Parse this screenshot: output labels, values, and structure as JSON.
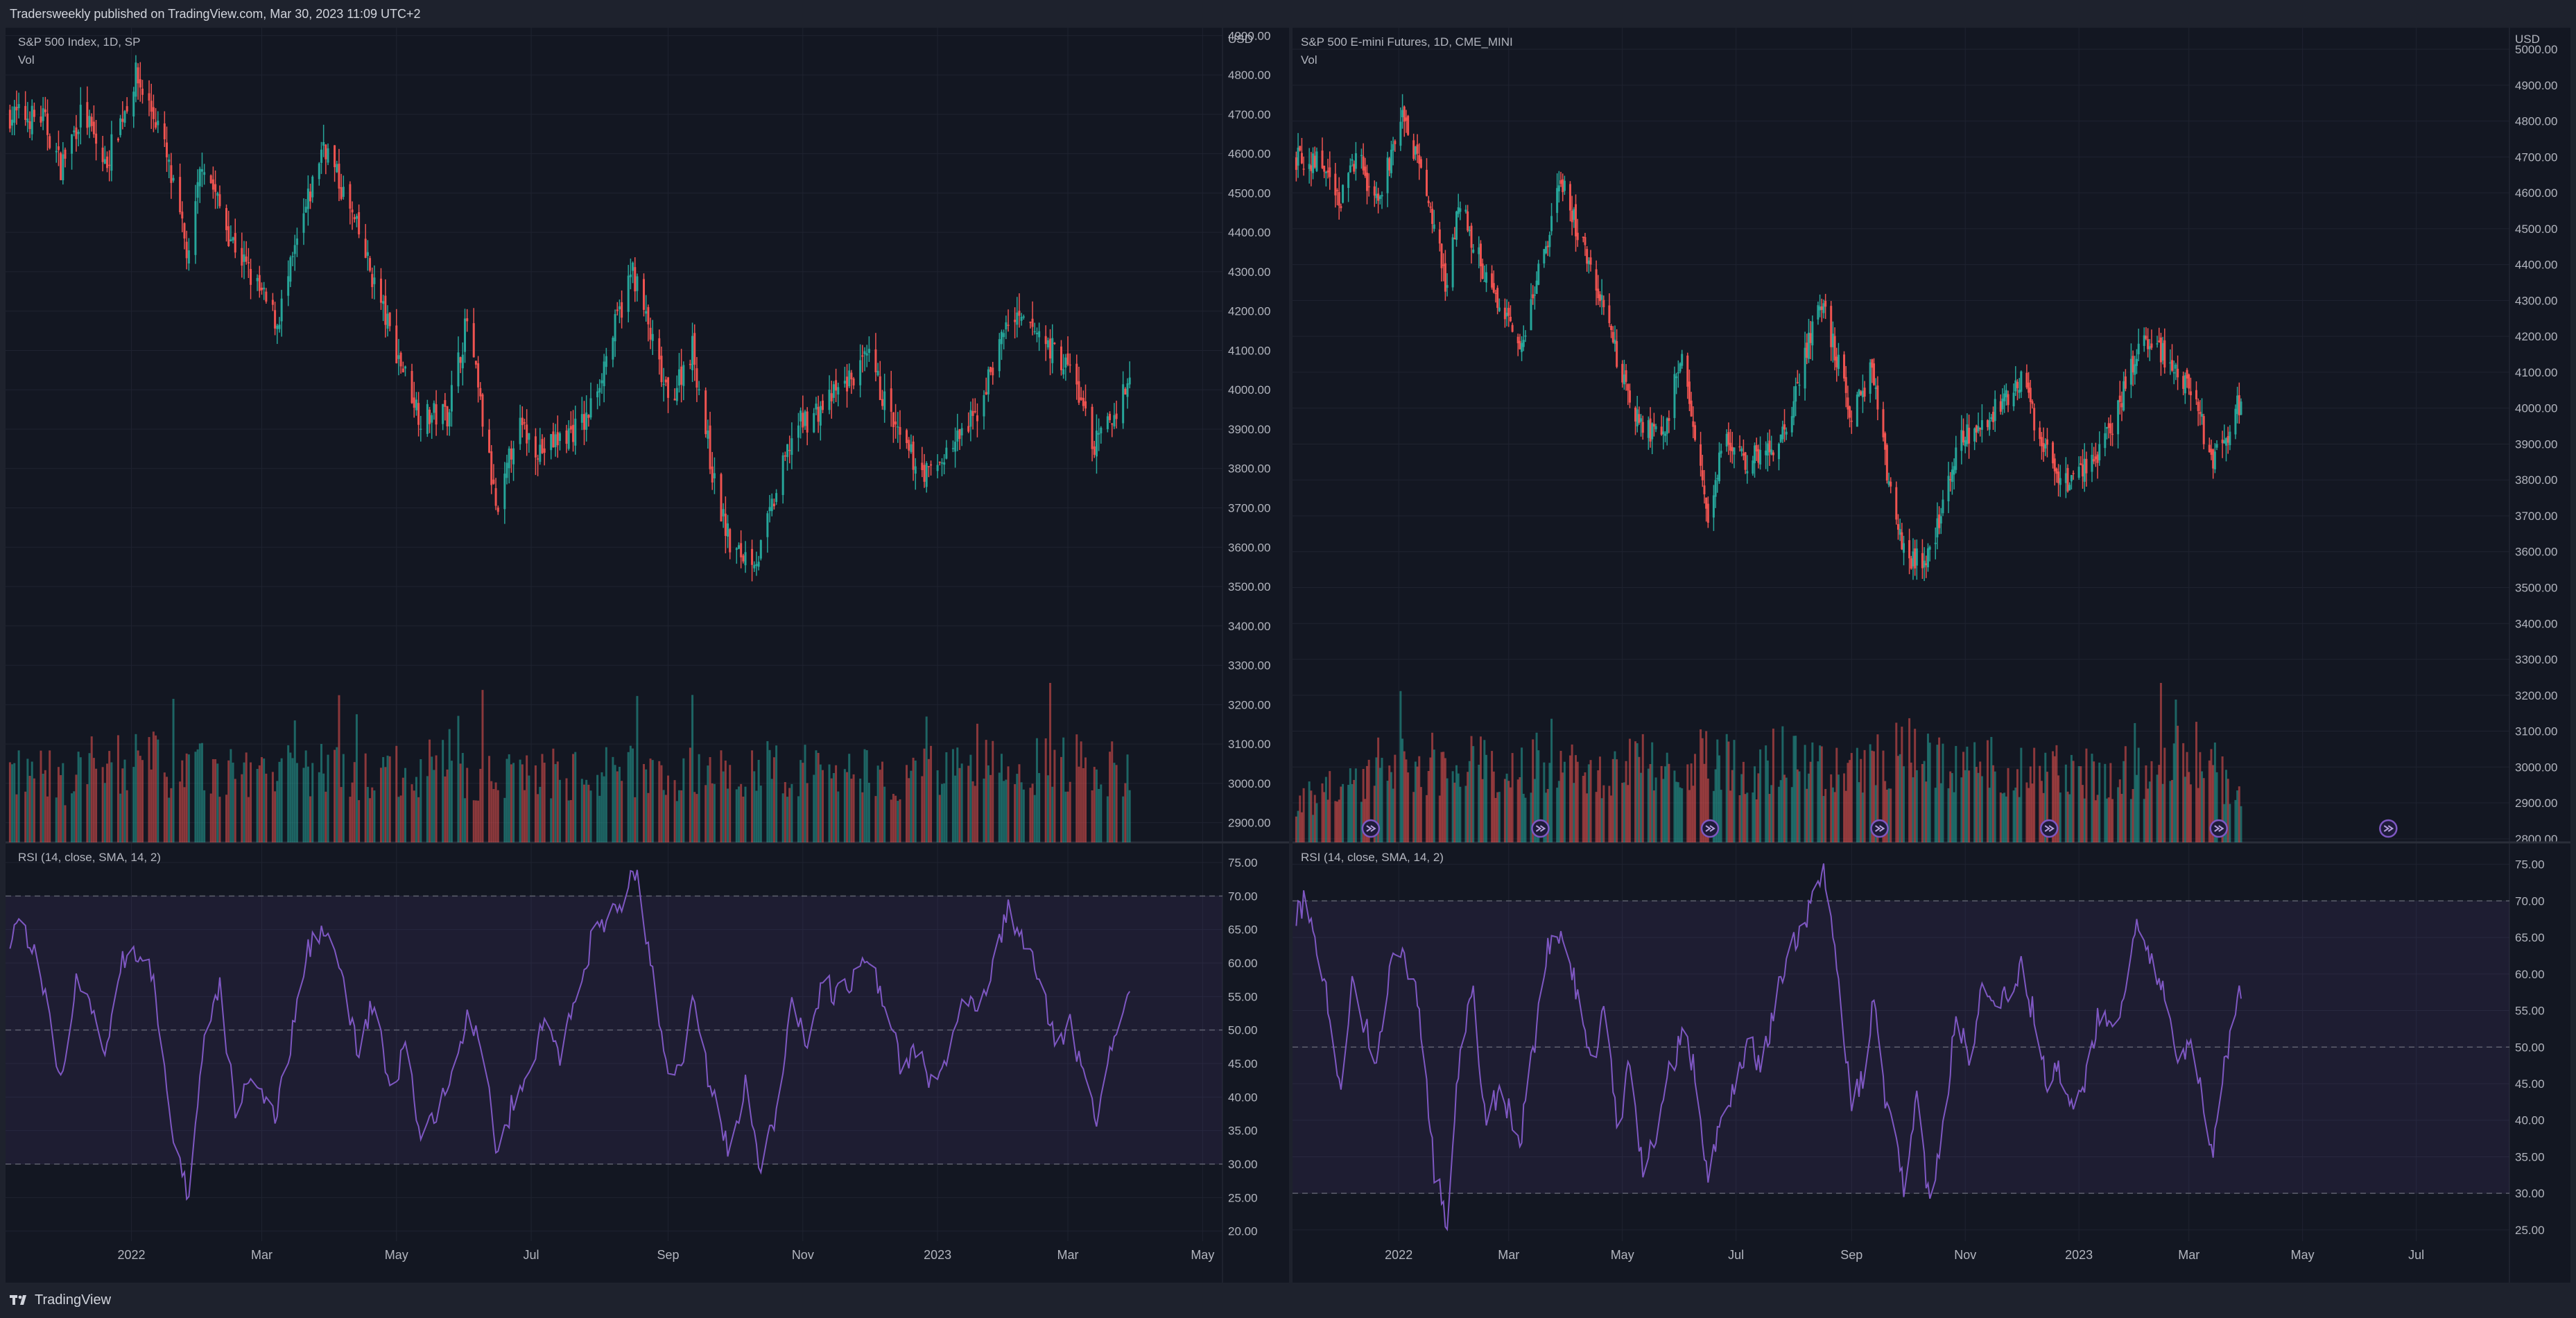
{
  "header": {
    "published": "Tradersweekly published on TradingView.com, Mar 30, 2023 11:09 UTC+2"
  },
  "footer": {
    "brand": "TradingView"
  },
  "colors": {
    "up": "#26a69a",
    "down": "#ef5350",
    "rsi": "#7e57c2",
    "background": "#131722",
    "grid": "#1f2330",
    "text": "#b2b5be"
  },
  "chart_data": [
    {
      "type": "candlestick",
      "title": "S&P 500 Index, 1D, SP",
      "volume_label": "Vol",
      "currency": "USD",
      "x_ticks": [
        "2022",
        "Mar",
        "May",
        "Jul",
        "Sep",
        "Nov",
        "2023",
        "Mar",
        "May"
      ],
      "y_ticks": [
        "4900.00",
        "4800.00",
        "4700.00",
        "4600.00",
        "4500.00",
        "4400.00",
        "4300.00",
        "4200.00",
        "4100.00",
        "4000.00",
        "3900.00",
        "3800.00",
        "3700.00",
        "3600.00",
        "3500.00",
        "3400.00",
        "3300.00",
        "3200.00",
        "3100.00",
        "3000.00",
        "2900.00"
      ],
      "ylim": [
        2850,
        4920
      ],
      "x_range": [
        "2021-11-05",
        "2023-05-10"
      ],
      "closes": [
        [
          "2021-11-05",
          4700
        ],
        [
          "2021-11-22",
          4690
        ],
        [
          "2021-11-30",
          4567
        ],
        [
          "2021-12-10",
          4712
        ],
        [
          "2021-12-20",
          4568
        ],
        [
          "2022-01-03",
          4797
        ],
        [
          "2022-01-14",
          4662
        ],
        [
          "2022-01-27",
          4326
        ],
        [
          "2022-02-02",
          4590
        ],
        [
          "2022-02-14",
          4400
        ],
        [
          "2022-02-24",
          4288
        ],
        [
          "2022-03-08",
          4170
        ],
        [
          "2022-03-29",
          4632
        ],
        [
          "2022-04-14",
          4392
        ],
        [
          "2022-04-29",
          4131
        ],
        [
          "2022-05-12",
          3930
        ],
        [
          "2022-05-24",
          3941
        ],
        [
          "2022-06-02",
          4176
        ],
        [
          "2022-06-16",
          3666
        ],
        [
          "2022-06-24",
          3911
        ],
        [
          "2022-07-06",
          3845
        ],
        [
          "2022-07-26",
          3921
        ],
        [
          "2022-08-16",
          4305
        ],
        [
          "2022-09-01",
          3966
        ],
        [
          "2022-09-12",
          4110
        ],
        [
          "2022-09-22",
          3757
        ],
        [
          "2022-09-30",
          3585
        ],
        [
          "2022-10-12",
          3577
        ],
        [
          "2022-10-28",
          3901
        ],
        [
          "2022-11-10",
          3956
        ],
        [
          "2022-12-01",
          4076
        ],
        [
          "2022-12-16",
          3852
        ],
        [
          "2022-12-28",
          3783
        ],
        [
          "2023-01-18",
          3928
        ],
        [
          "2023-02-02",
          4179
        ],
        [
          "2023-02-15",
          4147
        ],
        [
          "2023-03-03",
          4045
        ],
        [
          "2023-03-13",
          3855
        ],
        [
          "2023-03-22",
          3937
        ],
        [
          "2023-03-29",
          4027
        ]
      ],
      "volume_ylim": [
        0,
        100
      ],
      "volume": [
        42,
        45,
        38,
        48,
        40,
        52,
        44,
        46,
        41,
        50,
        43,
        47,
        39,
        45,
        44,
        48,
        42,
        41,
        46,
        43,
        40,
        44,
        47,
        42,
        45,
        41,
        49,
        43,
        46,
        44,
        45,
        42,
        47,
        43,
        48,
        44,
        50,
        52,
        46,
        45
      ],
      "rsi": {
        "label": "RSI (14, close, SMA, 14, 2)",
        "y_ticks": [
          "75.00",
          "70.00",
          "65.00",
          "60.00",
          "55.00",
          "50.00",
          "45.00",
          "40.00",
          "35.00",
          "30.00",
          "25.00",
          "20.00"
        ],
        "ylim": [
          18,
          78
        ],
        "band": [
          30,
          70
        ],
        "midline": 50,
        "values": [
          [
            "2021-11-05",
            63
          ],
          [
            "2021-11-12",
            67
          ],
          [
            "2021-11-22",
            57
          ],
          [
            "2021-11-30",
            42
          ],
          [
            "2021-12-07",
            58
          ],
          [
            "2021-12-14",
            52
          ],
          [
            "2021-12-20",
            47
          ],
          [
            "2021-12-28",
            61
          ],
          [
            "2022-01-04",
            62
          ],
          [
            "2022-01-11",
            58
          ],
          [
            "2022-01-20",
            32
          ],
          [
            "2022-01-27",
            25
          ],
          [
            "2022-02-03",
            49
          ],
          [
            "2022-02-10",
            56
          ],
          [
            "2022-02-17",
            38
          ],
          [
            "2022-02-24",
            44
          ],
          [
            "2022-03-07",
            36
          ],
          [
            "2022-03-14",
            48
          ],
          [
            "2022-03-22",
            62
          ],
          [
            "2022-03-29",
            66
          ],
          [
            "2022-04-06",
            58
          ],
          [
            "2022-04-14",
            46
          ],
          [
            "2022-04-21",
            55
          ],
          [
            "2022-04-29",
            38
          ],
          [
            "2022-05-05",
            49
          ],
          [
            "2022-05-12",
            33
          ],
          [
            "2022-05-19",
            37
          ],
          [
            "2022-05-26",
            45
          ],
          [
            "2022-06-03",
            53
          ],
          [
            "2022-06-09",
            46
          ],
          [
            "2022-06-16",
            31
          ],
          [
            "2022-06-24",
            41
          ],
          [
            "2022-07-01",
            45
          ],
          [
            "2022-07-08",
            52
          ],
          [
            "2022-07-14",
            46
          ],
          [
            "2022-07-22",
            56
          ],
          [
            "2022-07-29",
            64
          ],
          [
            "2022-08-05",
            66
          ],
          [
            "2022-08-12",
            70
          ],
          [
            "2022-08-17",
            74
          ],
          [
            "2022-08-24",
            61
          ],
          [
            "2022-09-01",
            42
          ],
          [
            "2022-09-08",
            47
          ],
          [
            "2022-09-13",
            56
          ],
          [
            "2022-09-20",
            41
          ],
          [
            "2022-09-27",
            34
          ],
          [
            "2022-09-30",
            31
          ],
          [
            "2022-10-06",
            43
          ],
          [
            "2022-10-13",
            29
          ],
          [
            "2022-10-20",
            38
          ],
          [
            "2022-10-27",
            55
          ],
          [
            "2022-11-03",
            48
          ],
          [
            "2022-11-10",
            57
          ],
          [
            "2022-11-17",
            55
          ],
          [
            "2022-11-24",
            58
          ],
          [
            "2022-12-01",
            60
          ],
          [
            "2022-12-08",
            54
          ],
          [
            "2022-12-15",
            45
          ],
          [
            "2022-12-22",
            47
          ],
          [
            "2022-12-29",
            42
          ],
          [
            "2023-01-06",
            47
          ],
          [
            "2023-01-13",
            55
          ],
          [
            "2023-01-20",
            52
          ],
          [
            "2023-01-27",
            60
          ],
          [
            "2023-02-02",
            69
          ],
          [
            "2023-02-09",
            62
          ],
          [
            "2023-02-16",
            58
          ],
          [
            "2023-02-23",
            48
          ],
          [
            "2023-03-02",
            51
          ],
          [
            "2023-03-09",
            42
          ],
          [
            "2023-03-14",
            36
          ],
          [
            "2023-03-20",
            48
          ],
          [
            "2023-03-24",
            50
          ],
          [
            "2023-03-29",
            56
          ]
        ]
      }
    },
    {
      "type": "candlestick",
      "title": "S&P 500 E-mini Futures, 1D, CME_MINI",
      "volume_label": "Vol",
      "currency": "USD",
      "x_ticks": [
        "2022",
        "Mar",
        "May",
        "Jul",
        "Sep",
        "Nov",
        "2023",
        "Mar",
        "May",
        "Jul"
      ],
      "y_ticks": [
        "5000.00",
        "4900.00",
        "4800.00",
        "4700.00",
        "4600.00",
        "4500.00",
        "4400.00",
        "4300.00",
        "4200.00",
        "4100.00",
        "4000.00",
        "3900.00",
        "3800.00",
        "3700.00",
        "3600.00",
        "3500.00",
        "3400.00",
        "3300.00",
        "3200.00",
        "3100.00",
        "3000.00",
        "2900.00",
        "2800.00"
      ],
      "ylim": [
        2790,
        5060
      ],
      "x_range": [
        "2021-11-05",
        "2023-08-20"
      ],
      "closes": [
        [
          "2021-11-05",
          4700
        ],
        [
          "2021-11-22",
          4690
        ],
        [
          "2021-11-30",
          4567
        ],
        [
          "2021-12-10",
          4712
        ],
        [
          "2021-12-20",
          4568
        ],
        [
          "2022-01-03",
          4797
        ],
        [
          "2022-01-14",
          4662
        ],
        [
          "2022-01-27",
          4326
        ],
        [
          "2022-02-02",
          4590
        ],
        [
          "2022-02-14",
          4400
        ],
        [
          "2022-02-24",
          4288
        ],
        [
          "2022-03-08",
          4170
        ],
        [
          "2022-03-29",
          4632
        ],
        [
          "2022-04-14",
          4392
        ],
        [
          "2022-04-29",
          4131
        ],
        [
          "2022-05-12",
          3930
        ],
        [
          "2022-05-24",
          3941
        ],
        [
          "2022-06-02",
          4176
        ],
        [
          "2022-06-16",
          3666
        ],
        [
          "2022-06-24",
          3911
        ],
        [
          "2022-07-06",
          3845
        ],
        [
          "2022-07-26",
          3921
        ],
        [
          "2022-08-16",
          4305
        ],
        [
          "2022-09-01",
          3966
        ],
        [
          "2022-09-12",
          4110
        ],
        [
          "2022-09-22",
          3757
        ],
        [
          "2022-09-30",
          3585
        ],
        [
          "2022-10-12",
          3577
        ],
        [
          "2022-10-28",
          3901
        ],
        [
          "2022-11-10",
          3956
        ],
        [
          "2022-12-01",
          4076
        ],
        [
          "2022-12-16",
          3852
        ],
        [
          "2022-12-28",
          3783
        ],
        [
          "2023-01-18",
          3928
        ],
        [
          "2023-02-02",
          4179
        ],
        [
          "2023-02-15",
          4147
        ],
        [
          "2023-03-03",
          4045
        ],
        [
          "2023-03-13",
          3855
        ],
        [
          "2023-03-22",
          3937
        ],
        [
          "2023-03-29",
          4027
        ]
      ],
      "volume_ylim": [
        0,
        100
      ],
      "volume": [
        22,
        30,
        34,
        40,
        38,
        44,
        46,
        52,
        48,
        42,
        50,
        46,
        44,
        40,
        48,
        50,
        46,
        52,
        48,
        44,
        54,
        50,
        46,
        42,
        52,
        56,
        58,
        50,
        46,
        48,
        44,
        42,
        46,
        40,
        44,
        42,
        48,
        60,
        44,
        24
      ],
      "volume_marker_icon": "rollover-icon",
      "volume_markers": [
        "2021-12-17",
        "2022-03-18",
        "2022-06-17",
        "2022-09-16",
        "2022-12-16",
        "2023-03-17",
        "2023-06-16"
      ],
      "rsi": {
        "label": "RSI (14, close, SMA, 14, 2)",
        "y_ticks": [
          "75.00",
          "70.00",
          "65.00",
          "60.00",
          "55.00",
          "50.00",
          "45.00",
          "40.00",
          "35.00",
          "30.00",
          "25.00"
        ],
        "ylim": [
          23,
          78
        ],
        "band": [
          30,
          70
        ],
        "midline": 50,
        "values": [
          [
            "2021-11-05",
            68
          ],
          [
            "2021-11-12",
            70
          ],
          [
            "2021-11-22",
            60
          ],
          [
            "2021-11-30",
            44
          ],
          [
            "2021-12-07",
            59
          ],
          [
            "2021-12-14",
            53
          ],
          [
            "2021-12-20",
            48
          ],
          [
            "2021-12-28",
            61
          ],
          [
            "2022-01-04",
            62
          ],
          [
            "2022-01-11",
            57
          ],
          [
            "2022-01-20",
            33
          ],
          [
            "2022-01-27",
            26
          ],
          [
            "2022-02-03",
            50
          ],
          [
            "2022-02-10",
            57
          ],
          [
            "2022-02-17",
            39
          ],
          [
            "2022-02-24",
            45
          ],
          [
            "2022-03-07",
            37
          ],
          [
            "2022-03-14",
            49
          ],
          [
            "2022-03-22",
            63
          ],
          [
            "2022-03-29",
            66
          ],
          [
            "2022-04-06",
            58
          ],
          [
            "2022-04-14",
            47
          ],
          [
            "2022-04-21",
            55
          ],
          [
            "2022-04-29",
            38
          ],
          [
            "2022-05-05",
            49
          ],
          [
            "2022-05-12",
            33
          ],
          [
            "2022-05-19",
            37
          ],
          [
            "2022-05-26",
            46
          ],
          [
            "2022-06-03",
            53
          ],
          [
            "2022-06-09",
            46
          ],
          [
            "2022-06-16",
            32
          ],
          [
            "2022-06-24",
            42
          ],
          [
            "2022-07-01",
            45
          ],
          [
            "2022-07-08",
            52
          ],
          [
            "2022-07-14",
            46
          ],
          [
            "2022-07-22",
            56
          ],
          [
            "2022-07-29",
            64
          ],
          [
            "2022-08-05",
            66
          ],
          [
            "2022-08-12",
            70
          ],
          [
            "2022-08-17",
            75
          ],
          [
            "2022-08-24",
            61
          ],
          [
            "2022-09-01",
            42
          ],
          [
            "2022-09-08",
            47
          ],
          [
            "2022-09-13",
            56
          ],
          [
            "2022-09-20",
            41
          ],
          [
            "2022-09-27",
            34
          ],
          [
            "2022-09-30",
            30
          ],
          [
            "2022-10-06",
            43
          ],
          [
            "2022-10-13",
            28
          ],
          [
            "2022-10-20",
            38
          ],
          [
            "2022-10-27",
            55
          ],
          [
            "2022-11-03",
            48
          ],
          [
            "2022-11-10",
            58
          ],
          [
            "2022-11-17",
            55
          ],
          [
            "2022-11-24",
            58
          ],
          [
            "2022-12-01",
            61
          ],
          [
            "2022-12-08",
            54
          ],
          [
            "2022-12-15",
            45
          ],
          [
            "2022-12-22",
            47
          ],
          [
            "2022-12-29",
            42
          ],
          [
            "2023-01-06",
            47
          ],
          [
            "2023-01-13",
            56
          ],
          [
            "2023-01-20",
            52
          ],
          [
            "2023-01-27",
            60
          ],
          [
            "2023-02-02",
            67
          ],
          [
            "2023-02-09",
            62
          ],
          [
            "2023-02-16",
            58
          ],
          [
            "2023-02-23",
            48
          ],
          [
            "2023-03-02",
            51
          ],
          [
            "2023-03-09",
            42
          ],
          [
            "2023-03-14",
            36
          ],
          [
            "2023-03-20",
            49
          ],
          [
            "2023-03-24",
            52
          ],
          [
            "2023-03-29",
            58
          ]
        ]
      }
    }
  ]
}
